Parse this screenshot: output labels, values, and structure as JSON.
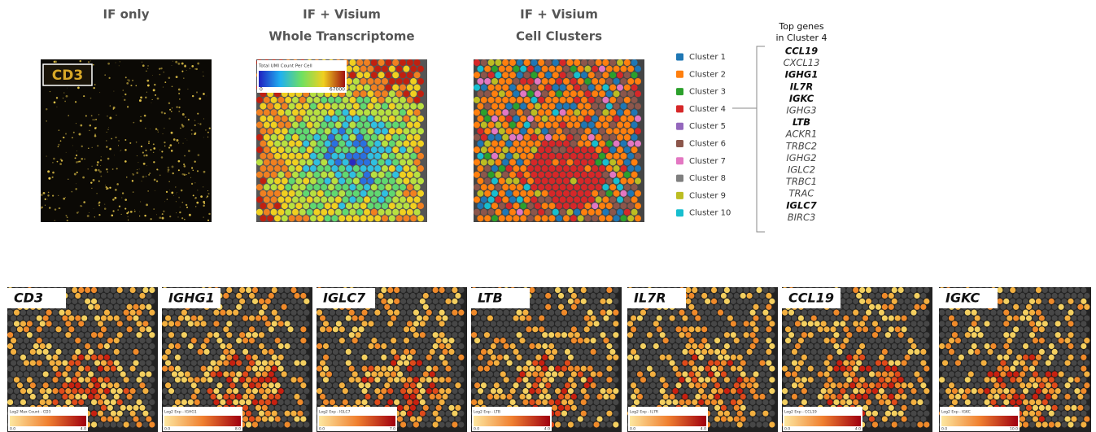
{
  "panels": [
    {
      "title_lines": [
        "IF only"
      ],
      "label": "CD3"
    },
    {
      "title_lines": [
        "IF + Visium",
        "Whole Transcriptome"
      ],
      "colorbar": {
        "title": "Total UMI Count Per Cell",
        "min": "0",
        "max": "67000"
      }
    },
    {
      "title_lines": [
        "IF + Visium",
        "Cell Clusters"
      ]
    }
  ],
  "legend": {
    "items": [
      {
        "label": "Cluster 1",
        "color": "#1f77b4"
      },
      {
        "label": "Cluster 2",
        "color": "#ff7f0e"
      },
      {
        "label": "Cluster 3",
        "color": "#2ca02c"
      },
      {
        "label": "Cluster 4",
        "color": "#d62728"
      },
      {
        "label": "Cluster 5",
        "color": "#9467bd"
      },
      {
        "label": "Cluster 6",
        "color": "#8c564b"
      },
      {
        "label": "Cluster 7",
        "color": "#e377c2"
      },
      {
        "label": "Cluster 8",
        "color": "#7f7f7f"
      },
      {
        "label": "Cluster 9",
        "color": "#bcbd22"
      },
      {
        "label": "Cluster 10",
        "color": "#17becf"
      }
    ]
  },
  "top_genes": {
    "title_lines": [
      "Top genes",
      "in Cluster 4"
    ],
    "genes": [
      {
        "name": "CCL19",
        "bold": true
      },
      {
        "name": "CXCL13",
        "bold": false
      },
      {
        "name": "IGHG1",
        "bold": true
      },
      {
        "name": "IL7R",
        "bold": true
      },
      {
        "name": "IGKC",
        "bold": true
      },
      {
        "name": "IGHG3",
        "bold": false
      },
      {
        "name": "LTB",
        "bold": true
      },
      {
        "name": "ACKR1",
        "bold": false
      },
      {
        "name": "TRBC2",
        "bold": false
      },
      {
        "name": "IGHG2",
        "bold": false
      },
      {
        "name": "IGLC2",
        "bold": false
      },
      {
        "name": "TRBC1",
        "bold": false
      },
      {
        "name": "TRAC",
        "bold": false
      },
      {
        "name": "IGLC7",
        "bold": true
      },
      {
        "name": "BIRC3",
        "bold": false
      }
    ]
  },
  "gene_panels": [
    {
      "gene": "CD3",
      "colorbar_title": "Log2 Max Count - CD3",
      "min": "0.0",
      "max": "4.0"
    },
    {
      "gene": "IGHG1",
      "colorbar_title": "Log2 Exp - IGHG1",
      "min": "0.0",
      "max": "8.0"
    },
    {
      "gene": "IGLC7",
      "colorbar_title": "Log2 Exp - IGLC7",
      "min": "0.0",
      "max": "7.0"
    },
    {
      "gene": "LTB",
      "colorbar_title": "Log2 Exp - LTB",
      "min": "0.0",
      "max": "4.0"
    },
    {
      "gene": "IL7R",
      "colorbar_title": "Log2 Exp - IL7R",
      "min": "0.0",
      "max": "4.0"
    },
    {
      "gene": "CCL19",
      "colorbar_title": "Log2 Exp - CCL19",
      "min": "0.0",
      "max": "4.0"
    },
    {
      "gene": "IGKC",
      "colorbar_title": "Log2 Exp - IGKC",
      "min": "0.0",
      "max": "10.0"
    }
  ]
}
